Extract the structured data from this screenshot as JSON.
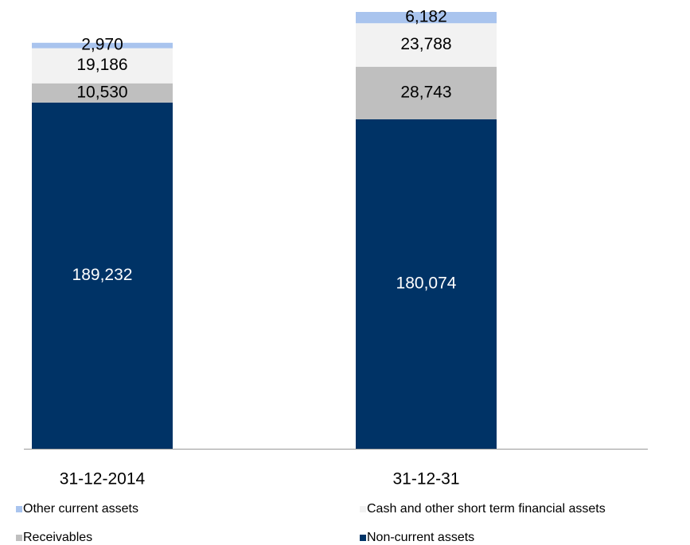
{
  "chart_data": {
    "type": "bar",
    "stacked": true,
    "categories": [
      "31-12-2014",
      "31-12-31"
    ],
    "series": [
      {
        "name": "Other current assets",
        "color": "#a9c4ee",
        "values": [
          2970,
          6182
        ],
        "value_labels": [
          "2,970",
          "6,182"
        ]
      },
      {
        "name": "Cash and other short term financial assets",
        "color": "#f2f2f2",
        "values": [
          19186,
          23788
        ],
        "value_labels": [
          "19,186",
          "23,788"
        ]
      },
      {
        "name": "Receivables",
        "color": "#bfbfbf",
        "values": [
          10530,
          28743
        ],
        "value_labels": [
          "10,530",
          "28,743"
        ]
      },
      {
        "name": "Non-current assets",
        "color": "#003366",
        "values": [
          189232,
          180074
        ],
        "value_labels": [
          "189,232",
          "180,074"
        ]
      }
    ]
  }
}
